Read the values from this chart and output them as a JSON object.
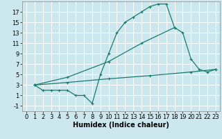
{
  "title": "",
  "xlabel": "Humidex (Indice chaleur)",
  "bg_color": "#cce8ee",
  "grid_color": "#ffffff",
  "line_color": "#1a7a6e",
  "xlim": [
    -0.5,
    23.5
  ],
  "ylim": [
    -2.0,
    19.0
  ],
  "xticks": [
    0,
    1,
    2,
    3,
    4,
    5,
    6,
    7,
    8,
    9,
    10,
    11,
    12,
    13,
    14,
    15,
    16,
    17,
    18,
    19,
    20,
    21,
    22,
    23
  ],
  "yticks": [
    -1,
    1,
    3,
    5,
    7,
    9,
    11,
    13,
    15,
    17
  ],
  "curve1_x": [
    1,
    2,
    3,
    4,
    5,
    6,
    7,
    8,
    9,
    10,
    11,
    12,
    13,
    14,
    15,
    16,
    17,
    18,
    19,
    20,
    21,
    22,
    23
  ],
  "curve1_y": [
    3,
    2,
    2,
    2,
    2,
    1,
    1,
    -0.5,
    5,
    9,
    13,
    15,
    16,
    17,
    18,
    18.5,
    18.5,
    14,
    13,
    8,
    6,
    5.5,
    6
  ],
  "curve2_x": [
    1,
    5,
    10,
    15,
    20,
    23
  ],
  "curve2_y": [
    3,
    3.5,
    4.2,
    4.8,
    5.5,
    6.0
  ],
  "curve3_x": [
    1,
    5,
    10,
    14,
    18
  ],
  "curve3_y": [
    3,
    4.5,
    7.5,
    11.0,
    14.0
  ],
  "fontsize_label": 7,
  "fontsize_tick": 6
}
